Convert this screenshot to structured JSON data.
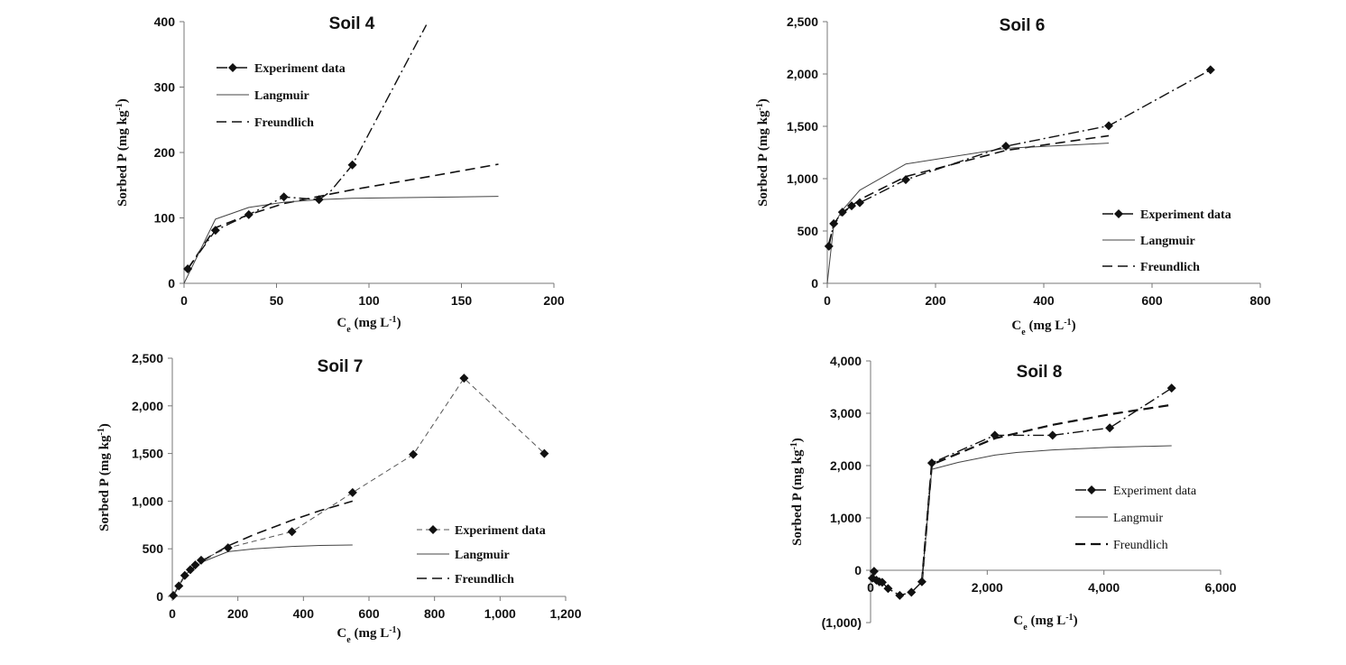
{
  "chart_data": [
    {
      "type": "line",
      "title": "Soil 4",
      "xlabel": "Ce (mg L-1)",
      "ylabel": "Sorbed P (mg kg-1)",
      "xlim": [
        0,
        200
      ],
      "ylim": [
        0,
        400
      ],
      "xticks": [
        "0",
        "50",
        "100",
        "150",
        "200"
      ],
      "yticks": [
        "0",
        "100",
        "200",
        "300",
        "400"
      ],
      "legend_position": "top-left",
      "series": [
        {
          "name": "Experiment data",
          "style": "dashdot-marker",
          "x": [
            2,
            17,
            35,
            54,
            73,
            79,
            91,
            131
          ],
          "y": [
            22,
            81,
            105,
            132,
            128,
            140,
            181,
            395
          ],
          "markers": [
            true,
            true,
            true,
            true,
            true,
            false,
            true,
            false
          ]
        },
        {
          "name": "Langmuir",
          "style": "solid",
          "x": [
            0,
            17,
            35,
            54,
            73,
            91,
            120,
            170
          ],
          "y": [
            0,
            98,
            116,
            124,
            128,
            130,
            131,
            133
          ]
        },
        {
          "name": "Freundlich",
          "style": "dashed",
          "x": [
            2,
            17,
            35,
            54,
            73,
            91,
            130,
            170
          ],
          "y": [
            22,
            85,
            105,
            122,
            133,
            143,
            162,
            182
          ]
        }
      ]
    },
    {
      "type": "line",
      "title": "Soil 6",
      "xlabel": "Ce (mg L-1)",
      "ylabel": "Sorbed P (mg kg-1)",
      "xlim": [
        0,
        800
      ],
      "ylim": [
        0,
        2500
      ],
      "xticks": [
        "0",
        "200",
        "400",
        "600",
        "800"
      ],
      "yticks": [
        "0",
        "500",
        "1,000",
        "1,500",
        "2,000",
        "2,500"
      ],
      "legend_position": "bottom-right",
      "series": [
        {
          "name": "Experiment data",
          "style": "dashdot-marker",
          "x": [
            3,
            12,
            28,
            45,
            60,
            145,
            330,
            520,
            708
          ],
          "y": [
            355,
            570,
            680,
            740,
            770,
            990,
            1310,
            1505,
            2040
          ],
          "markers": [
            true,
            true,
            true,
            true,
            true,
            true,
            true,
            true,
            true
          ]
        },
        {
          "name": "Langmuir",
          "style": "solid",
          "x": [
            0,
            12,
            28,
            60,
            145,
            330,
            520
          ],
          "y": [
            0,
            560,
            700,
            890,
            1140,
            1290,
            1340
          ]
        },
        {
          "name": "Freundlich",
          "style": "dashed",
          "x": [
            3,
            12,
            28,
            60,
            145,
            330,
            520
          ],
          "y": [
            380,
            560,
            670,
            800,
            1020,
            1270,
            1410
          ]
        }
      ]
    },
    {
      "type": "line",
      "title": "Soil 7",
      "xlabel": "Ce (mg L-1)",
      "ylabel": "Sorbed P (mg kg-1)",
      "xlim": [
        0,
        1200
      ],
      "ylim": [
        0,
        2500
      ],
      "xticks": [
        "0",
        "200",
        "400",
        "600",
        "800",
        "1,000",
        "1,200"
      ],
      "yticks": [
        "0",
        "500",
        "1,000",
        "1,500",
        "2,000",
        "2,500"
      ],
      "legend_position": "bottom-right",
      "series": [
        {
          "name": "Experiment data",
          "style": "dashed-marker",
          "x": [
            3,
            20,
            38,
            55,
            70,
            88,
            170,
            365,
            550,
            735,
            890,
            1135
          ],
          "y": [
            10,
            110,
            220,
            280,
            330,
            380,
            510,
            680,
            1090,
            1490,
            2290,
            1500
          ],
          "markers": [
            true,
            true,
            true,
            true,
            true,
            true,
            true,
            true,
            true,
            true,
            true,
            true
          ]
        },
        {
          "name": "Langmuir",
          "style": "solid",
          "x": [
            3,
            40,
            90,
            170,
            250,
            365,
            450,
            550
          ],
          "y": [
            10,
            230,
            360,
            470,
            500,
            525,
            535,
            540
          ]
        },
        {
          "name": "Freundlich",
          "style": "dashed",
          "x": [
            3,
            40,
            90,
            170,
            250,
            365,
            450,
            550
          ],
          "y": [
            10,
            230,
            370,
            530,
            650,
            800,
            900,
            1000
          ]
        }
      ]
    },
    {
      "type": "line",
      "title": "Soil 8",
      "xlabel": "Ce (mg L-1)",
      "ylabel": "Sorbed P (mg kg-1)",
      "xlim": [
        0,
        6000
      ],
      "ylim": [
        -1000,
        4000
      ],
      "xticks": [
        "0",
        "2,000",
        "4,000",
        "6,000"
      ],
      "yticks": [
        "(1,000)",
        "0",
        "1,000",
        "2,000",
        "3,000",
        "4,000"
      ],
      "legend_position": "bottom-right",
      "series": [
        {
          "name": "Experiment data",
          "style": "dashdot-marker",
          "x": [
            30,
            60,
            100,
            150,
            200,
            300,
            500,
            700,
            880,
            1050,
            2130,
            3120,
            4100,
            5160
          ],
          "y": [
            -150,
            -20,
            -190,
            -220,
            -230,
            -350,
            -480,
            -420,
            -220,
            2050,
            2580,
            2580,
            2720,
            3480
          ],
          "markers": [
            true,
            true,
            true,
            true,
            true,
            true,
            true,
            true,
            true,
            true,
            true,
            true,
            true,
            true
          ]
        },
        {
          "name": "Langmuir",
          "style": "solid",
          "x": [
            880,
            1050,
            1500,
            2130,
            2500,
            3120,
            4100,
            5160
          ],
          "y": [
            -220,
            1930,
            2060,
            2200,
            2250,
            2300,
            2350,
            2380
          ]
        },
        {
          "name": "Freundlich",
          "style": "dashed-bold",
          "x": [
            880,
            1050,
            2130,
            3120,
            4100,
            5160
          ],
          "y": [
            -220,
            2020,
            2520,
            2780,
            2980,
            3160
          ]
        }
      ]
    }
  ]
}
